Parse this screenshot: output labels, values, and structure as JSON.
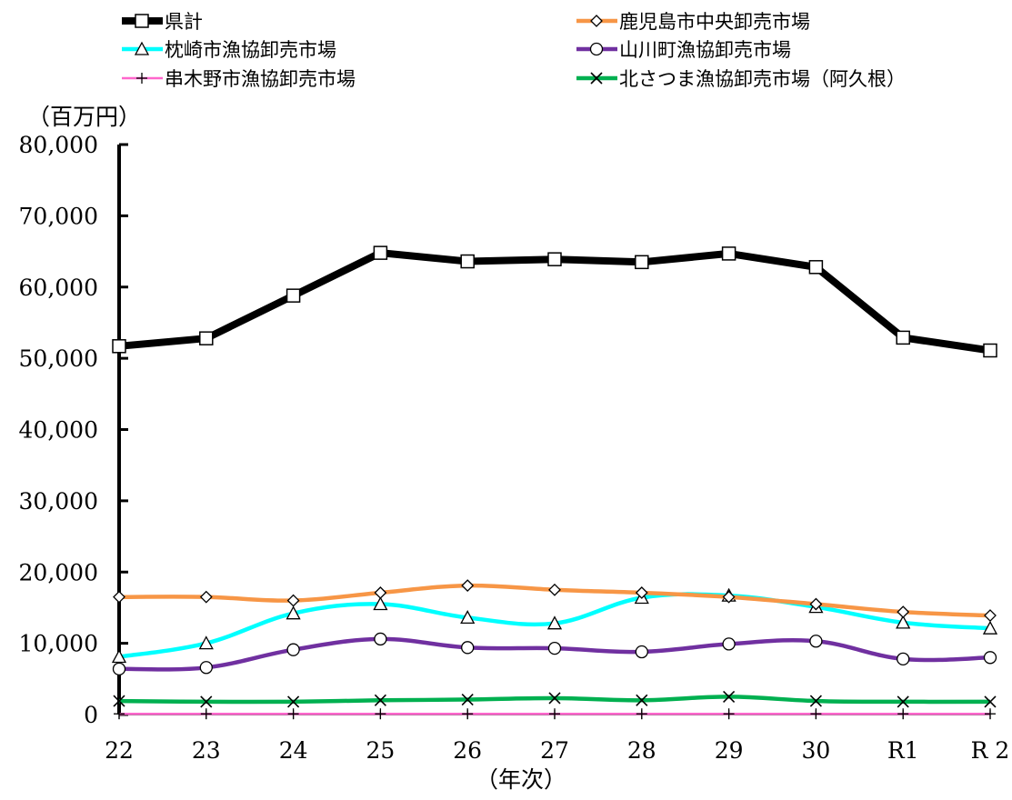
{
  "chart_data": {
    "type": "line",
    "ylabel": "（百万円）",
    "xlabel": "（年次）",
    "ylim": [
      0,
      80000
    ],
    "yticks": [
      "0",
      "10,000",
      "20,000",
      "30,000",
      "40,000",
      "50,000",
      "60,000",
      "70,000",
      "80,000"
    ],
    "categories": [
      "22",
      "23",
      "24",
      "25",
      "26",
      "27",
      "28",
      "29",
      "30",
      "R1",
      "R 2"
    ],
    "grid": false,
    "legend_position": "top",
    "series": [
      {
        "name": "県計",
        "color": "#000000",
        "marker": "square",
        "values": [
          51700,
          52800,
          58800,
          64800,
          63600,
          63900,
          63500,
          64700,
          62800,
          52900,
          51100
        ]
      },
      {
        "name": "鹿児島市中央卸売市場",
        "color": "#f79646",
        "marker": "diamond",
        "values": [
          16500,
          16500,
          16000,
          17100,
          18100,
          17500,
          17100,
          16500,
          15500,
          14400,
          13900
        ]
      },
      {
        "name": "枕崎市漁協卸売市場",
        "color": "#00ffff",
        "marker": "triangle",
        "values": [
          8100,
          10000,
          14200,
          15500,
          13600,
          12800,
          16400,
          16700,
          15100,
          12900,
          12100
        ]
      },
      {
        "name": "山川町漁協卸売市場",
        "color": "#7030a0",
        "marker": "circle",
        "values": [
          6400,
          6600,
          9100,
          10600,
          9400,
          9300,
          8800,
          9900,
          10300,
          7800,
          8000
        ]
      },
      {
        "name": "串木野市漁協卸売市場",
        "color": "#ff66cc",
        "marker": "plus",
        "values": [
          100,
          100,
          100,
          100,
          100,
          100,
          100,
          100,
          100,
          100,
          100
        ]
      },
      {
        "name": "北さつま漁協卸売市場（阿久根）",
        "color": "#00b050",
        "marker": "cross",
        "values": [
          1900,
          1800,
          1800,
          2000,
          2100,
          2300,
          2000,
          2500,
          1900,
          1800,
          1800
        ]
      }
    ]
  }
}
